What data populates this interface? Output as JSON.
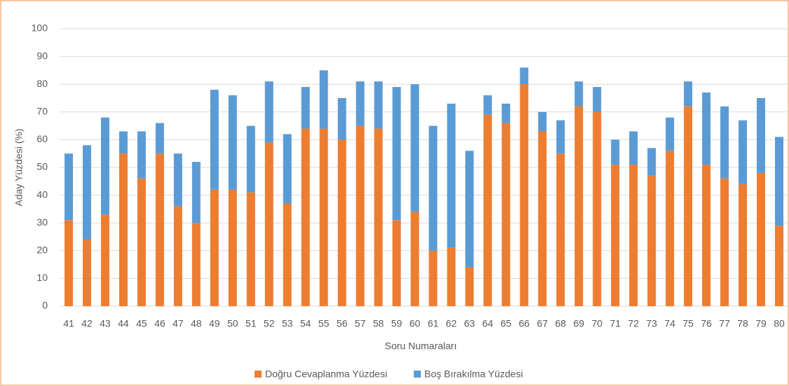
{
  "chart_data": {
    "type": "stacked_bar",
    "xlabel": "Soru Numaraları",
    "ylabel": "Aday Yüzdesi (%)",
    "categories": [
      "41",
      "42",
      "43",
      "44",
      "45",
      "46",
      "47",
      "48",
      "49",
      "50",
      "51",
      "52",
      "53",
      "54",
      "55",
      "56",
      "57",
      "58",
      "59",
      "60",
      "61",
      "62",
      "63",
      "64",
      "65",
      "66",
      "67",
      "68",
      "69",
      "70",
      "71",
      "72",
      "73",
      "74",
      "75",
      "76",
      "77",
      "78",
      "79",
      "80"
    ],
    "series": [
      {
        "name": "Doğru Cevaplanma Yüzdesi",
        "color": "#ed7d31",
        "values": [
          31,
          24,
          33,
          55,
          46,
          55,
          36,
          30,
          42,
          42,
          41,
          59,
          37,
          64,
          64,
          60,
          65,
          64,
          31,
          34,
          20,
          21,
          14,
          69,
          66,
          80,
          63,
          55,
          72,
          70,
          51,
          51,
          47,
          56,
          72,
          51,
          46,
          44,
          48,
          29
        ]
      },
      {
        "name": "Boş Bırakılma Yüzdesi",
        "color": "#5b9bd5",
        "values": [
          24,
          34,
          35,
          8,
          17,
          11,
          19,
          22,
          36,
          34,
          24,
          22,
          25,
          15,
          21,
          15,
          16,
          17,
          48,
          46,
          45,
          52,
          42,
          7,
          7,
          6,
          7,
          12,
          9,
          9,
          9,
          12,
          10,
          12,
          9,
          26,
          26,
          23,
          27,
          32
        ]
      }
    ],
    "ylim": [
      0,
      100
    ],
    "yticks": [
      0,
      10,
      20,
      30,
      40,
      50,
      60,
      70,
      80,
      90,
      100
    ],
    "grid": true,
    "legend": "bottom"
  }
}
